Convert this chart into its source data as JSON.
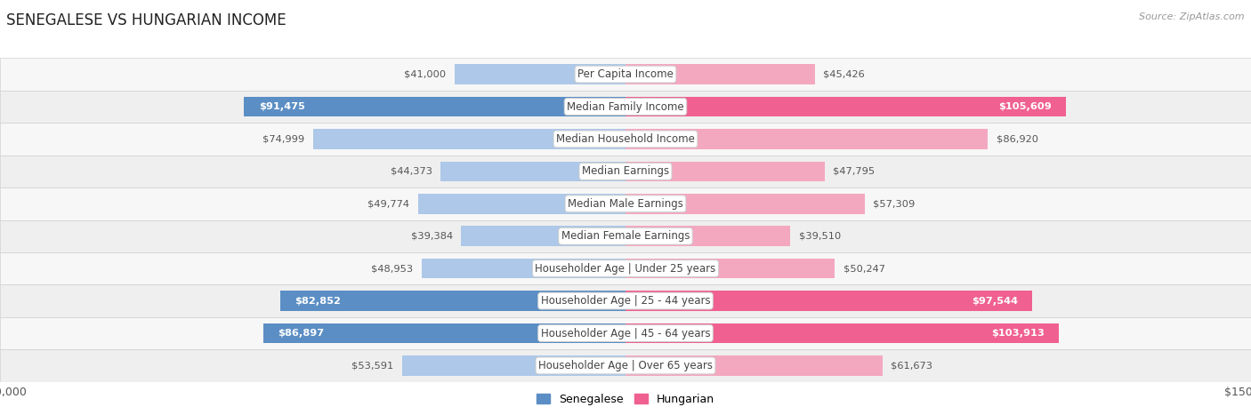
{
  "title": "SENEGALESE VS HUNGARIAN INCOME",
  "source": "Source: ZipAtlas.com",
  "categories": [
    "Per Capita Income",
    "Median Family Income",
    "Median Household Income",
    "Median Earnings",
    "Median Male Earnings",
    "Median Female Earnings",
    "Householder Age | Under 25 years",
    "Householder Age | 25 - 44 years",
    "Householder Age | 45 - 64 years",
    "Householder Age | Over 65 years"
  ],
  "senegalese_values": [
    41000,
    91475,
    74999,
    44373,
    49774,
    39384,
    48953,
    82852,
    86897,
    53591
  ],
  "hungarian_values": [
    45426,
    105609,
    86920,
    47795,
    57309,
    39510,
    50247,
    97544,
    103913,
    61673
  ],
  "senegalese_labels": [
    "$41,000",
    "$91,475",
    "$74,999",
    "$44,373",
    "$49,774",
    "$39,384",
    "$48,953",
    "$82,852",
    "$86,897",
    "$53,591"
  ],
  "hungarian_labels": [
    "$45,426",
    "$105,609",
    "$86,920",
    "$47,795",
    "$57,309",
    "$39,510",
    "$50,247",
    "$97,544",
    "$103,913",
    "$61,673"
  ],
  "senegalese_color_light": "#adc8e8",
  "senegalese_color_dark": "#5b8ec4",
  "hungarian_color_light": "#f4a8c0",
  "hungarian_color_dark": "#f06090",
  "row_bg_even": "#f7f7f7",
  "row_bg_odd": "#efefef",
  "axis_max": 150000,
  "bar_height": 0.62,
  "legend_senegalese": "Senegalese",
  "legend_hungarian": "Hungarian",
  "title_fontsize": 12,
  "category_fontsize": 8.5,
  "value_label_fontsize": 8.2,
  "senegalese_dark_rows": [
    1,
    7,
    8
  ],
  "hungarian_dark_rows": [
    1,
    7,
    8
  ]
}
